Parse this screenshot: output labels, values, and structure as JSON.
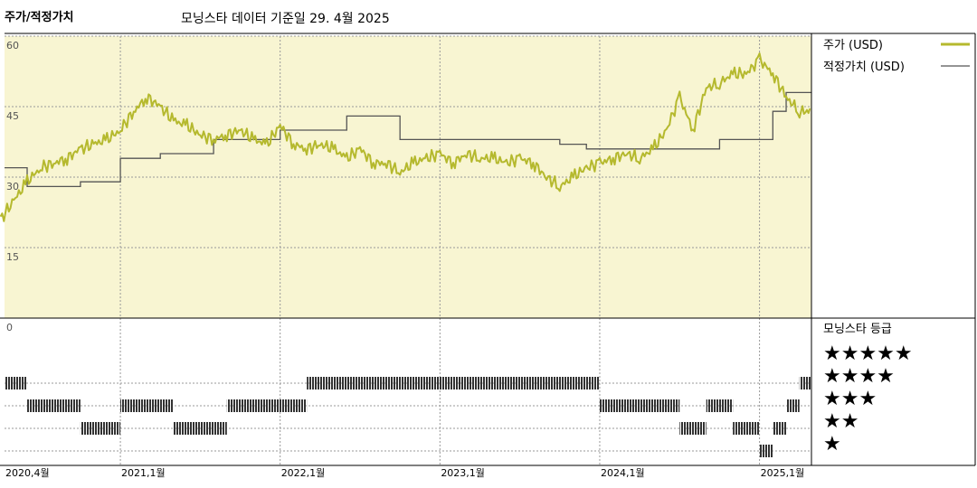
{
  "header": {
    "title": "주가/적정가치",
    "subtitle": "모닝스타 데이터 기준일 29. 4월 2025"
  },
  "legend": {
    "price_label": "주가 (USD)",
    "fair_value_label": "적정가치 (USD)",
    "rating_title": "모닝스타 등급"
  },
  "colors": {
    "price": "#b5b92e",
    "fair_value": "#555555",
    "plot_bg": "#f8f5d2",
    "rating_bar": "#333333",
    "grid": "#999999"
  },
  "chart_data": [
    {
      "type": "line",
      "y_ticks": [
        60,
        45,
        30,
        15
      ],
      "ylim": [
        0,
        60
      ],
      "x_ticks": [
        "2020,4월",
        "2021,1월",
        "2022,1월",
        "2023,1월",
        "2024,1월",
        "2025,1월"
      ],
      "x_range": [
        "2020-04",
        "2025-04"
      ],
      "legend_placement": "right",
      "series": [
        {
          "name": "주가 (USD)",
          "x": [
            "2020-04",
            "2020-05",
            "2020-06",
            "2020-07",
            "2020-08",
            "2020-09",
            "2020-10",
            "2020-11",
            "2020-12",
            "2021-01",
            "2021-02",
            "2021-03",
            "2021-04",
            "2021-05",
            "2021-06",
            "2021-07",
            "2021-08",
            "2021-09",
            "2021-10",
            "2021-11",
            "2021-12",
            "2022-01",
            "2022-02",
            "2022-03",
            "2022-04",
            "2022-05",
            "2022-06",
            "2022-07",
            "2022-08",
            "2022-09",
            "2022-10",
            "2022-11",
            "2022-12",
            "2023-01",
            "2023-02",
            "2023-03",
            "2023-04",
            "2023-05",
            "2023-06",
            "2023-07",
            "2023-08",
            "2023-09",
            "2023-10",
            "2023-11",
            "2023-12",
            "2024-01",
            "2024-02",
            "2024-03",
            "2024-04",
            "2024-05",
            "2024-06",
            "2024-07",
            "2024-08",
            "2024-09",
            "2024-10",
            "2024-11",
            "2024-12",
            "2025-01",
            "2025-02",
            "2025-03",
            "2025-04"
          ],
          "values": [
            21,
            25,
            29,
            32,
            33,
            34,
            36,
            37,
            38,
            40,
            44,
            47,
            45,
            42,
            41,
            39,
            38,
            39,
            40,
            38,
            37,
            41,
            37,
            36,
            37,
            36,
            34,
            36,
            33,
            33,
            31,
            33,
            34,
            35,
            33,
            35,
            34,
            34,
            33,
            34,
            33,
            30,
            28,
            30,
            32,
            33,
            34,
            35,
            34,
            36,
            40,
            47,
            40,
            49,
            50,
            52,
            52,
            55,
            52,
            47,
            44
          ]
        },
        {
          "name": "적정가치 (USD)",
          "x": [
            "2020-04",
            "2020-06",
            "2020-10",
            "2021-01",
            "2021-04",
            "2021-08",
            "2022-01",
            "2022-06",
            "2022-10",
            "2023-03",
            "2023-07",
            "2023-10",
            "2023-12",
            "2024-04",
            "2024-10",
            "2025-01",
            "2025-02",
            "2025-03"
          ],
          "values": [
            32,
            28,
            29,
            34,
            35,
            38,
            40,
            43,
            38,
            38,
            38,
            37,
            36,
            36,
            38,
            38,
            44,
            48
          ]
        }
      ]
    },
    {
      "type": "heatmap",
      "title": "모닝스타 등급",
      "levels": [
        "★★★★★",
        "★★★★",
        "★★★",
        "★★",
        "★"
      ],
      "periods": [
        {
          "from": "2020-04",
          "to": "2020-06",
          "rating": 4
        },
        {
          "from": "2020-06",
          "to": "2020-10",
          "rating": 3
        },
        {
          "from": "2020-10",
          "to": "2021-01",
          "rating": 2
        },
        {
          "from": "2021-01",
          "to": "2021-05",
          "rating": 3
        },
        {
          "from": "2021-05",
          "to": "2021-09",
          "rating": 2
        },
        {
          "from": "2021-09",
          "to": "2022-03",
          "rating": 3
        },
        {
          "from": "2022-03",
          "to": "2024-01",
          "rating": 4
        },
        {
          "from": "2024-01",
          "to": "2024-07",
          "rating": 3
        },
        {
          "from": "2024-07",
          "to": "2024-09",
          "rating": 2
        },
        {
          "from": "2024-09",
          "to": "2024-11",
          "rating": 3
        },
        {
          "from": "2024-11",
          "to": "2025-01",
          "rating": 2
        },
        {
          "from": "2025-01",
          "to": "2025-02",
          "rating": 1
        },
        {
          "from": "2025-02",
          "to": "2025-03",
          "rating": 2
        },
        {
          "from": "2025-03",
          "to": "2025-04",
          "rating": 3
        },
        {
          "from": "2025-04",
          "to": "2025-05",
          "rating": 4
        }
      ]
    }
  ]
}
